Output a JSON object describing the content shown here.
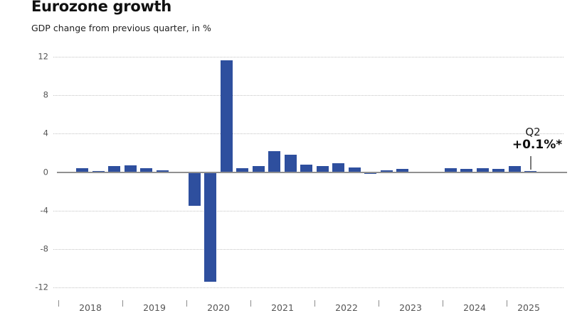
{
  "header": {
    "title": "Eurozone growth",
    "subtitle": "GDP change from previous quarter, in %"
  },
  "annotation": {
    "line1": "Q2",
    "line2": "+0.1%*",
    "target_quarter": "2025 Q2"
  },
  "colors": {
    "bar": "#2e4f9e",
    "gridline": "#c3c3c3",
    "zero_line": "#909090",
    "axis_text": "#565656",
    "title_text": "#111111"
  },
  "chart_data": {
    "type": "bar",
    "title": "Eurozone growth",
    "ylabel": "GDP change from previous quarter, in %",
    "xlabel": "",
    "grid": "horizontal dotted, solid zero line",
    "legend": "none",
    "ylim": [
      -12,
      12
    ],
    "yticks": [
      12,
      8,
      4,
      0,
      -4,
      -8,
      -12
    ],
    "year_labels": [
      "2018",
      "2019",
      "2020",
      "2021",
      "2022",
      "2023",
      "2024",
      "2025"
    ],
    "categories": [
      "2018 Q1",
      "2018 Q2",
      "2018 Q3",
      "2018 Q4",
      "2019 Q1",
      "2019 Q2",
      "2019 Q3",
      "2019 Q4",
      "2020 Q1",
      "2020 Q2",
      "2020 Q3",
      "2020 Q4",
      "2021 Q1",
      "2021 Q2",
      "2021 Q3",
      "2021 Q4",
      "2022 Q1",
      "2022 Q2",
      "2022 Q3",
      "2022 Q4",
      "2023 Q1",
      "2023 Q2",
      "2023 Q3",
      "2023 Q4",
      "2024 Q1",
      "2024 Q2",
      "2024 Q3",
      "2024 Q4",
      "2025 Q1",
      "2025 Q2"
    ],
    "values": [
      0.0,
      0.4,
      0.1,
      0.6,
      0.7,
      0.4,
      0.2,
      0.0,
      -3.4,
      -11.3,
      11.6,
      0.4,
      0.6,
      2.2,
      1.8,
      0.8,
      0.6,
      0.9,
      0.5,
      -0.1,
      0.2,
      0.3,
      0.0,
      0.0,
      0.4,
      0.3,
      0.4,
      0.3,
      0.6,
      0.1
    ],
    "annotation": {
      "label": "Q2",
      "value_label": "+0.1%*",
      "points_to": "2025 Q2"
    }
  }
}
